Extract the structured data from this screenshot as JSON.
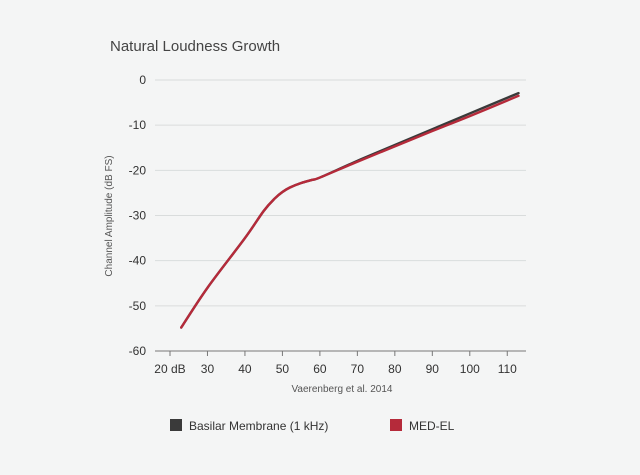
{
  "chart_data": {
    "type": "line",
    "title": "Natural Loudness Growth",
    "xlabel": "Vaerenberg et al. 2014",
    "ylabel": "Channel Amplitude (dB FS)",
    "xlim": [
      16,
      115
    ],
    "ylim": [
      -60,
      0
    ],
    "x_ticks": [
      20,
      30,
      40,
      50,
      60,
      70,
      80,
      90,
      100,
      110
    ],
    "x_tick_labels": [
      "20 dB",
      "30",
      "40",
      "50",
      "60",
      "70",
      "80",
      "90",
      "100",
      "110"
    ],
    "y_ticks": [
      0,
      -10,
      -20,
      -30,
      -40,
      -50,
      -60
    ],
    "y_tick_labels": [
      "0",
      "-10",
      "-20",
      "-30",
      "-40",
      "-50",
      "-60"
    ],
    "grid": "horizontal",
    "legend_position": "bottom",
    "series": [
      {
        "name": "Basilar Membrane (1 kHz)",
        "color": "#3a3a3a",
        "x": [
          23,
          30,
          40,
          45,
          48,
          50,
          52,
          55,
          58,
          60,
          70,
          80,
          90,
          100,
          113
        ],
        "y": [
          -54.8,
          -46,
          -35,
          -29,
          -26.2,
          -24.8,
          -23.8,
          -22.8,
          -22.1,
          -21.6,
          -17.9,
          -14.4,
          -10.9,
          -7.4,
          -2.9
        ]
      },
      {
        "name": "MED-EL",
        "color": "#b52a3a",
        "x": [
          23,
          30,
          40,
          45,
          48,
          50,
          52,
          55,
          58,
          60,
          70,
          80,
          90,
          100,
          113
        ],
        "y": [
          -54.8,
          -46,
          -35,
          -29,
          -26.2,
          -24.8,
          -23.8,
          -22.8,
          -22.1,
          -21.6,
          -18.1,
          -14.7,
          -11.3,
          -8,
          -3.5
        ]
      }
    ]
  }
}
